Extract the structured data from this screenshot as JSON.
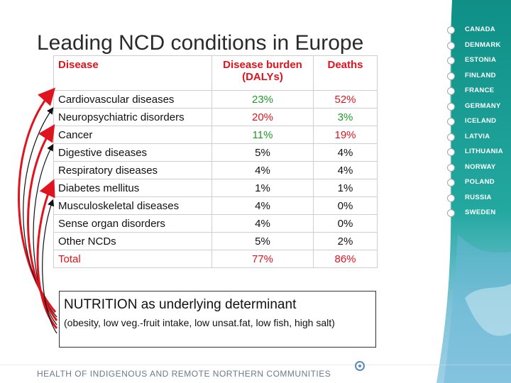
{
  "title": "Leading NCD conditions in Europe",
  "table": {
    "headers": {
      "disease": "Disease",
      "dalys_line1": "Disease burden",
      "dalys_line2": "(DALYs)",
      "deaths": "Deaths"
    },
    "rows": [
      {
        "disease": "Cardiovascular diseases",
        "dalys": "23%",
        "deaths": "52%"
      },
      {
        "disease": "Neuropsychiatric disorders",
        "dalys": "20%",
        "deaths": "3%"
      },
      {
        "disease": "Cancer",
        "dalys": "11%",
        "deaths": "19%"
      },
      {
        "disease": "Digestive diseases",
        "dalys": "5%",
        "deaths": "4%"
      },
      {
        "disease": "Respiratory diseases",
        "dalys": "4%",
        "deaths": "4%"
      },
      {
        "disease": "Diabetes mellitus",
        "dalys": "1%",
        "deaths": "1%"
      },
      {
        "disease": "Musculoskeletal diseases",
        "dalys": "4%",
        "deaths": "0%"
      },
      {
        "disease": "Sense organ disorders",
        "dalys": "4%",
        "deaths": "0%"
      },
      {
        "disease": "Other NCDs",
        "dalys": "5%",
        "deaths": "2%"
      }
    ],
    "total": {
      "disease": "Total",
      "dalys": "77%",
      "deaths": "86%"
    }
  },
  "note": {
    "main": "NUTRITION as underlying determinant",
    "sub": "(obesity, low veg.-fruit intake, low unsat.fat, low fish, high salt)"
  },
  "countries": [
    "CANADA",
    "DENMARK",
    "ESTONIA",
    "FINLAND",
    "FRANCE",
    "GERMANY",
    "ICELAND",
    "LATVIA",
    "LITHUANIA",
    "NORWAY",
    "POLAND",
    "RUSSIA",
    "SWEDEN"
  ],
  "footer": "HEALTH OF INDIGENOUS AND REMOTE NORTHERN COMMUNITIES",
  "colors": {
    "header_red": "#e0141e",
    "green": "#1f9a2a",
    "panel_teal": "#1f9a8a",
    "arrow_red": "#e0141e",
    "arrow_black": "#111111"
  }
}
